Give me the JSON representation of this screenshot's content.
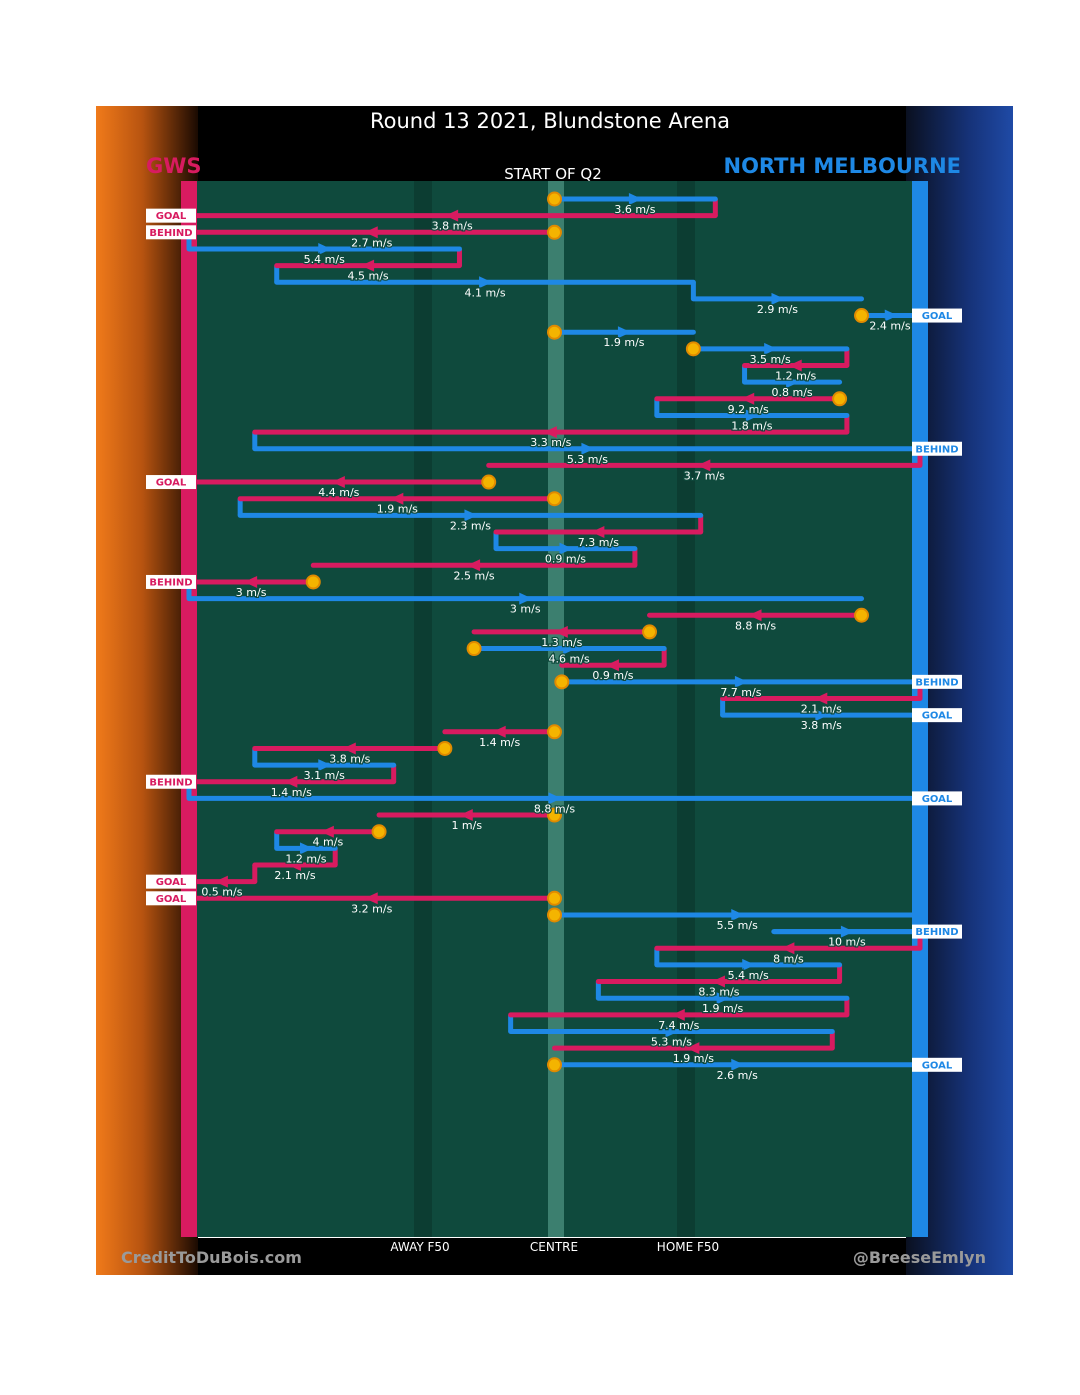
{
  "title": "Round 13 2021, Blundstone Arena",
  "subtitle": "START OF Q2",
  "teams": {
    "left": {
      "name": "GWS",
      "color": "#d81b60"
    },
    "right": {
      "name": "NORTH MELBOURNE",
      "color": "#1e88e5"
    }
  },
  "credits": {
    "left": "CreditToDuBois.com",
    "right": "@BreeseEmlyn"
  },
  "axis": {
    "labels": [
      "AWAY F50",
      "CENTRE",
      "HOME F50"
    ]
  },
  "chart_data": {
    "type": "line",
    "description": "Ball movement chains; x = field position from GWS goal (0) to North Melbourne goal (100)",
    "xlim": [
      0,
      100
    ],
    "ticks": [
      {
        "label": "AWAY F50",
        "x": 31
      },
      {
        "label": "CENTRE",
        "x": 50
      },
      {
        "label": "HOME F50",
        "x": 69
      }
    ],
    "segments": [
      {
        "team": "N",
        "from": 50,
        "to": 72,
        "speed": "3.6 m/s",
        "start": true
      },
      {
        "team": "G",
        "from": 72,
        "to": 0,
        "speed": "3.8 m/s",
        "result": "GOAL"
      },
      {
        "team": "G",
        "from": 50,
        "to": 0,
        "speed": "2.7 m/s",
        "start": true,
        "result": "BEHIND"
      },
      {
        "team": "N",
        "from": 0,
        "to": 37,
        "speed": "5.4 m/s"
      },
      {
        "team": "G",
        "from": 37,
        "to": 12,
        "speed": "4.5 m/s"
      },
      {
        "team": "N",
        "from": 12,
        "to": 69,
        "speed": "4.1 m/s"
      },
      {
        "team": "N",
        "from": 69,
        "to": 92,
        "speed": "2.9 m/s"
      },
      {
        "team": "N",
        "from": 92,
        "to": 100,
        "speed": "2.4 m/s",
        "start": true,
        "result": "GOAL"
      },
      {
        "team": "N",
        "from": 50,
        "to": 69,
        "speed": "1.9 m/s",
        "start": true
      },
      {
        "team": "N",
        "from": 69,
        "to": 90,
        "speed": "3.5 m/s",
        "start": true
      },
      {
        "team": "G",
        "from": 90,
        "to": 76,
        "speed": "1.2 m/s"
      },
      {
        "team": "N",
        "from": 76,
        "to": 89,
        "speed": "0.8 m/s"
      },
      {
        "team": "G",
        "from": 89,
        "to": 64,
        "speed": "9.2 m/s",
        "start": true
      },
      {
        "team": "N",
        "from": 64,
        "to": 90,
        "speed": "1.8 m/s"
      },
      {
        "team": "G",
        "from": 90,
        "to": 9,
        "speed": "3.3 m/s"
      },
      {
        "team": "N",
        "from": 9,
        "to": 100,
        "speed": "5.3 m/s",
        "result": "BEHIND"
      },
      {
        "team": "G",
        "from": 100,
        "to": 41,
        "speed": "3.7 m/s"
      },
      {
        "team": "G",
        "from": 41,
        "to": 0,
        "speed": "4.4 m/s",
        "start": true,
        "result": "GOAL"
      },
      {
        "team": "G",
        "from": 50,
        "to": 7,
        "speed": "1.9 m/s",
        "start": true
      },
      {
        "team": "N",
        "from": 7,
        "to": 70,
        "speed": "2.3 m/s"
      },
      {
        "team": "G",
        "from": 70,
        "to": 42,
        "speed": "7.3 m/s"
      },
      {
        "team": "N",
        "from": 42,
        "to": 61,
        "speed": "0.9 m/s"
      },
      {
        "team": "G",
        "from": 61,
        "to": 17,
        "speed": "2.5 m/s"
      },
      {
        "team": "G",
        "from": 17,
        "to": 0,
        "speed": "3 m/s",
        "start": true,
        "result": "BEHIND"
      },
      {
        "team": "N",
        "from": 0,
        "to": 92,
        "speed": "3 m/s"
      },
      {
        "team": "G",
        "from": 92,
        "to": 63,
        "speed": "8.8 m/s",
        "start": true
      },
      {
        "team": "G",
        "from": 63,
        "to": 39,
        "speed": "1.3 m/s",
        "start": true
      },
      {
        "team": "N",
        "from": 39,
        "to": 65,
        "speed": "4.6 m/s",
        "start": true
      },
      {
        "team": "G",
        "from": 65,
        "to": 51,
        "speed": "0.9 m/s"
      },
      {
        "team": "N",
        "from": 51,
        "to": 100,
        "speed": "7.7 m/s",
        "start": true,
        "result": "BEHIND"
      },
      {
        "team": "G",
        "from": 100,
        "to": 73,
        "speed": "2.1 m/s"
      },
      {
        "team": "N",
        "from": 73,
        "to": 100,
        "speed": "3.8 m/s",
        "result": "GOAL"
      },
      {
        "team": "G",
        "from": 50,
        "to": 35,
        "speed": "1.4 m/s",
        "start": true
      },
      {
        "team": "G",
        "from": 35,
        "to": 9,
        "speed": "3.8 m/s",
        "start": true
      },
      {
        "team": "N",
        "from": 9,
        "to": 28,
        "speed": "3.1 m/s"
      },
      {
        "team": "G",
        "from": 28,
        "to": 0,
        "speed": "1.4 m/s",
        "result": "BEHIND"
      },
      {
        "team": "N",
        "from": 0,
        "to": 100,
        "speed": "8.8 m/s",
        "result": "GOAL"
      },
      {
        "team": "G",
        "from": 50,
        "to": 26,
        "speed": "1 m/s",
        "start": true
      },
      {
        "team": "G",
        "from": 26,
        "to": 12,
        "speed": "4 m/s",
        "start": true
      },
      {
        "team": "N",
        "from": 12,
        "to": 20,
        "speed": "1.2 m/s"
      },
      {
        "team": "G",
        "from": 20,
        "to": 9,
        "speed": "2.1 m/s"
      },
      {
        "team": "G",
        "from": 9,
        "to": 0,
        "speed": "0.5 m/s",
        "result": "GOAL"
      },
      {
        "team": "G",
        "from": 50,
        "to": 0,
        "speed": "3.2 m/s",
        "start": true,
        "result": "GOAL"
      },
      {
        "team": "N",
        "from": 50,
        "to": 100,
        "speed": "5.5 m/s",
        "start": true
      },
      {
        "team": "N",
        "from": 80,
        "to": 100,
        "speed": "10 m/s",
        "result": "BEHIND"
      },
      {
        "team": "G",
        "from": 100,
        "to": 64,
        "speed": "8 m/s"
      },
      {
        "team": "N",
        "from": 64,
        "to": 89,
        "speed": "5.4 m/s"
      },
      {
        "team": "G",
        "from": 89,
        "to": 56,
        "speed": "8.3 m/s"
      },
      {
        "team": "N",
        "from": 56,
        "to": 90,
        "speed": "1.9 m/s"
      },
      {
        "team": "G",
        "from": 90,
        "to": 44,
        "speed": "7.4 m/s"
      },
      {
        "team": "N",
        "from": 44,
        "to": 88,
        "speed": "5.3 m/s"
      },
      {
        "team": "G",
        "from": 88,
        "to": 50,
        "speed": "1.9 m/s"
      },
      {
        "team": "N",
        "from": 50,
        "to": 100,
        "speed": "2.6 m/s",
        "start": true,
        "result": "GOAL"
      }
    ]
  }
}
